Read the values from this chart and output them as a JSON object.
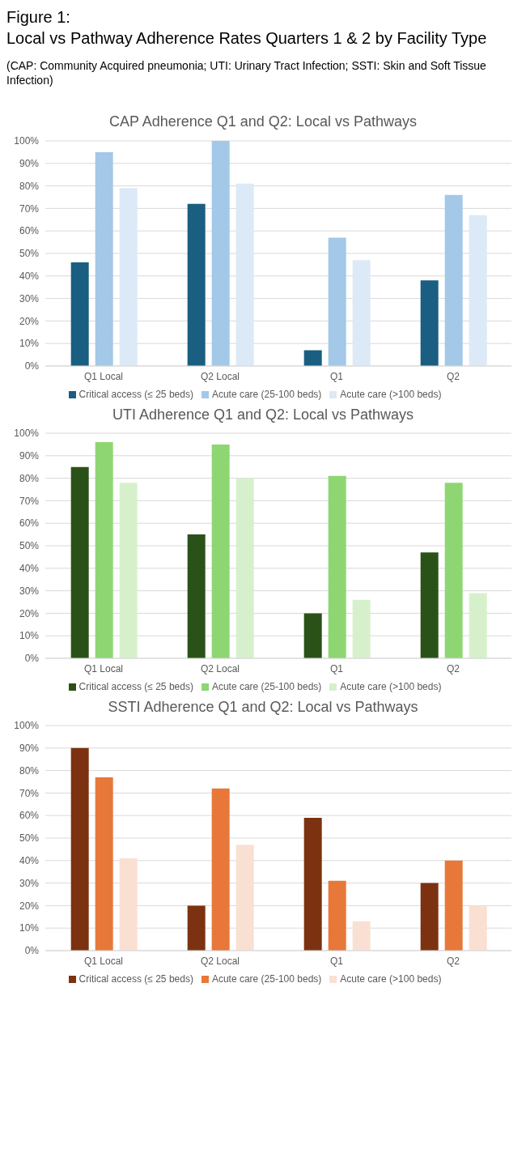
{
  "chart_data": [
    {
      "type": "bar",
      "title": "CAP Adherence Q1 and Q2: Local vs Pathways",
      "annotations": [
        "Figure 1:",
        "Local vs Pathway Adherence Rates Quarters 1 & 2 by Facility Type",
        "(CAP: Community Acquired pneumonia; UTI: Urinary Tract Infection; SSTI: Skin and Soft Tissue Infection)"
      ],
      "categories": [
        "Q1 Local",
        "Q2 Local",
        "Q1",
        "Q2"
      ],
      "series": [
        {
          "name": "Critical access (≤ 25 beds)",
          "color": "#1a5e82",
          "values": [
            46,
            72,
            7,
            38
          ]
        },
        {
          "name": "Acute care (25-100 beds)",
          "color": "#a3c8e8",
          "values": [
            95,
            100,
            57,
            76
          ]
        },
        {
          "name": "Acute care (>100 beds)",
          "color": "#dce9f6",
          "values": [
            79,
            81,
            47,
            67
          ]
        }
      ],
      "ylim": [
        0,
        100
      ],
      "yticks": [
        {
          "value": 0,
          "label": "0%"
        },
        {
          "value": 10,
          "label": "10%"
        },
        {
          "value": 20,
          "label": "20%"
        },
        {
          "value": 30,
          "label": "30%"
        },
        {
          "value": 40,
          "label": "40%"
        },
        {
          "value": 50,
          "label": "50%"
        },
        {
          "value": 60,
          "label": "60%"
        },
        {
          "value": 70,
          "label": "70%"
        },
        {
          "value": 80,
          "label": "80%"
        },
        {
          "value": 90,
          "label": "90%"
        },
        {
          "value": 100,
          "label": "100%"
        }
      ],
      "grid": "y",
      "legend": "bottom"
    },
    {
      "type": "bar",
      "title": "UTI Adherence Q1 and Q2: Local vs Pathways",
      "categories": [
        "Q1 Local",
        "Q2 Local",
        "Q1",
        "Q2"
      ],
      "series": [
        {
          "name": "Critical access (≤ 25 beds)",
          "color": "#2a5218",
          "values": [
            85,
            55,
            20,
            47
          ]
        },
        {
          "name": "Acute care (25-100 beds)",
          "color": "#8ed672",
          "values": [
            96,
            95,
            81,
            78
          ]
        },
        {
          "name": "Acute care (>100 beds)",
          "color": "#d7f0cc",
          "values": [
            78,
            80,
            26,
            29
          ]
        }
      ],
      "ylim": [
        0,
        100
      ],
      "yticks": [
        {
          "value": 0,
          "label": "0%"
        },
        {
          "value": 10,
          "label": "10%"
        },
        {
          "value": 20,
          "label": "20%"
        },
        {
          "value": 30,
          "label": "30%"
        },
        {
          "value": 40,
          "label": "40%"
        },
        {
          "value": 50,
          "label": "50%"
        },
        {
          "value": 60,
          "label": "60%"
        },
        {
          "value": 70,
          "label": "70%"
        },
        {
          "value": 80,
          "label": "80%"
        },
        {
          "value": 90,
          "label": "90%"
        },
        {
          "value": 100,
          "label": "100%"
        }
      ],
      "grid": "y",
      "legend": "bottom"
    },
    {
      "type": "bar",
      "title": "SSTI Adherence Q1 and Q2: Local vs Pathways",
      "categories": [
        "Q1 Local",
        "Q2 Local",
        "Q1",
        "Q2"
      ],
      "series": [
        {
          "name": "Critical access (≤ 25 beds)",
          "color": "#7c3210",
          "values": [
            90,
            20,
            59,
            30
          ]
        },
        {
          "name": "Acute care (25-100 beds)",
          "color": "#e8773a",
          "values": [
            77,
            72,
            31,
            40
          ]
        },
        {
          "name": "Acute care (>100 beds)",
          "color": "#f9e0d3",
          "values": [
            41,
            47,
            13,
            20
          ]
        }
      ],
      "ylim": [
        0,
        100
      ],
      "yticks": [
        {
          "value": 0,
          "label": "0%"
        },
        {
          "value": 10,
          "label": "10%"
        },
        {
          "value": 20,
          "label": "20%"
        },
        {
          "value": 30,
          "label": "30%"
        },
        {
          "value": 40,
          "label": "40%"
        },
        {
          "value": 50,
          "label": "50%"
        },
        {
          "value": 60,
          "label": "60%"
        },
        {
          "value": 70,
          "label": "70%"
        },
        {
          "value": 80,
          "label": "80%"
        },
        {
          "value": 90,
          "label": "90%"
        },
        {
          "value": 100,
          "label": "100%"
        }
      ],
      "grid": "y",
      "legend": "bottom"
    }
  ]
}
